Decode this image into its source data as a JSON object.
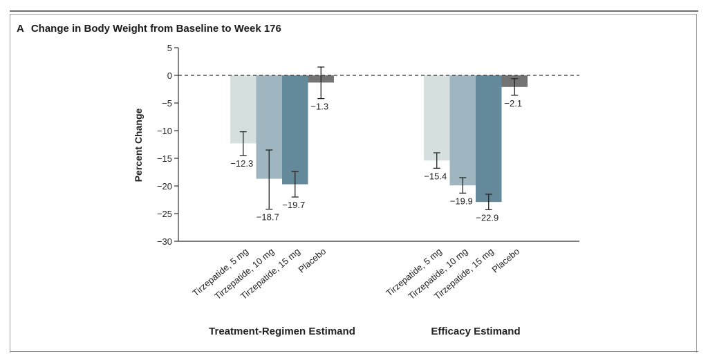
{
  "panel": {
    "letter": "A",
    "title": "Change in Body Weight from Baseline to Week 176"
  },
  "chart_data": {
    "type": "bar",
    "title": "Change in Body Weight from Baseline to Week 176",
    "ylabel": "Percent Change",
    "xlabel": "",
    "ylim": [
      -30,
      5
    ],
    "yticks": [
      5,
      0,
      -5,
      -10,
      -15,
      -20,
      -25,
      -30
    ],
    "grid": false,
    "zero_line": "dashed",
    "categories": [
      "Tirzepatide, 5 mg",
      "Tirzepatide, 10 mg",
      "Tirzepatide, 15 mg",
      "Placebo"
    ],
    "groups": [
      {
        "name": "Treatment-Regimen Estimand",
        "values": [
          -12.3,
          -18.7,
          -19.7,
          -1.3
        ],
        "value_labels": [
          "−12.3",
          "−18.7",
          "−19.7",
          "−1.3"
        ],
        "error_low": [
          -14.5,
          -24.2,
          -22.0,
          -4.2
        ],
        "error_high": [
          -10.2,
          -13.5,
          -17.4,
          1.5
        ]
      },
      {
        "name": "Efficacy Estimand",
        "values": [
          -15.4,
          -19.9,
          -22.9,
          -2.1
        ],
        "value_labels": [
          "−15.4",
          "−19.9",
          "−22.9",
          "−2.1"
        ],
        "error_low": [
          -16.8,
          -21.3,
          -24.3,
          -3.6
        ],
        "error_high": [
          -14.0,
          -18.5,
          -21.5,
          -0.6
        ]
      }
    ],
    "colors": [
      "#d5dfe0",
      "#9fb5bf",
      "#64899a",
      "#737373"
    ]
  }
}
